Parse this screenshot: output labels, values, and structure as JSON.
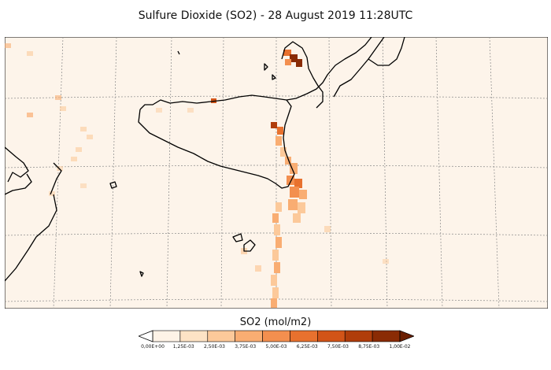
{
  "title": "Sulfure Dioxide (SO2) - 28 August 2019 11:28UTC",
  "colorbar": {
    "label": "SO2 (mol/m2)",
    "ticks": [
      "0,00E+00",
      "1,25E-03",
      "2,50E-03",
      "3,75E-03",
      "5,00E-03",
      "6,25E-03",
      "7,50E-03",
      "8,75E-03",
      "1,00E-02"
    ],
    "colors": [
      "#fef3e7",
      "#fde3c5",
      "#fcc99a",
      "#f9ad72",
      "#f38f4f",
      "#e8712e",
      "#d25418",
      "#b03d0b",
      "#8a2b05"
    ],
    "extend": "both"
  },
  "map": {
    "background": "#fdf4ea",
    "coastline_color": "#000000",
    "graticule": "dashed"
  }
}
